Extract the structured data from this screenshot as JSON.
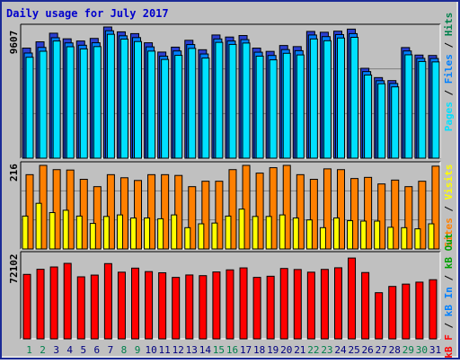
{
  "colors": {
    "frame_bg": "#c0c0c0",
    "frame_border": "#1b2a96",
    "title": "#0000cc",
    "bar_outline": "#000000",
    "pages_front": "#1414c8",
    "files_mid": "#0080ff",
    "hits_back": "#00e0ff",
    "visits": "#ffff00",
    "sites": "#ff8000",
    "kb": "#ff0000",
    "weekend_label": "#00804c",
    "weekday_label": "#000080"
  },
  "chart_data": [
    {
      "type": "bar",
      "title": "Daily usage for July 2017",
      "ylabel": "9607",
      "ylim": [
        0,
        9607
      ],
      "legend": {
        "placement": "right",
        "entries": [
          {
            "text": "Pages",
            "color": "#00e0ff"
          },
          {
            "text": " / ",
            "color": "#000000"
          },
          {
            "text": "Files",
            "color": "#0080ff"
          },
          {
            "text": " / ",
            "color": "#000000"
          },
          {
            "text": "Hits",
            "color": "#00804c"
          }
        ]
      },
      "categories": [
        "1",
        "2",
        "3",
        "4",
        "5",
        "6",
        "7",
        "8",
        "9",
        "10",
        "11",
        "12",
        "13",
        "14",
        "15",
        "16",
        "17",
        "18",
        "19",
        "20",
        "21",
        "22",
        "23",
        "24",
        "25",
        "26",
        "27",
        "28",
        "29",
        "30",
        "31"
      ],
      "series": [
        {
          "name": "Hits",
          "values": [
            8060,
            8520,
            9150,
            8740,
            8580,
            8770,
            9607,
            9250,
            9120,
            8450,
            7770,
            8130,
            8630,
            7940,
            9020,
            8870,
            8980,
            8060,
            7820,
            8250,
            8170,
            9280,
            9220,
            9300,
            9450,
            6580,
            5900,
            5680,
            8100,
            7550,
            7520
          ]
        },
        {
          "name": "Files",
          "values": [
            7700,
            8110,
            8820,
            8440,
            8270,
            8450,
            9330,
            8960,
            8830,
            8150,
            7470,
            7850,
            8320,
            7630,
            8730,
            8580,
            8680,
            7760,
            7520,
            7950,
            7870,
            9020,
            8900,
            9050,
            9120,
            6340,
            5670,
            5470,
            7850,
            7310,
            7300
          ]
        },
        {
          "name": "Pages",
          "values": [
            7390,
            7830,
            8580,
            8160,
            8000,
            8170,
            9070,
            8720,
            8540,
            7840,
            7230,
            7530,
            8040,
            7330,
            8480,
            8330,
            8430,
            7470,
            7200,
            7680,
            7560,
            8730,
            8600,
            8800,
            8850,
            6090,
            5450,
            5220,
            7570,
            7080,
            7050
          ]
        }
      ]
    },
    {
      "type": "bar",
      "ylabel": "216",
      "ylim": [
        0,
        216
      ],
      "legend": {
        "placement": "right",
        "entries": [
          {
            "text": "Sites",
            "color": "#ff8000"
          },
          {
            "text": " / ",
            "color": "#000000"
          },
          {
            "text": "Visits",
            "color": "#ffff00"
          }
        ]
      },
      "categories": [
        "1",
        "2",
        "3",
        "4",
        "5",
        "6",
        "7",
        "8",
        "9",
        "10",
        "11",
        "12",
        "13",
        "14",
        "15",
        "16",
        "17",
        "18",
        "19",
        "20",
        "21",
        "22",
        "23",
        "24",
        "25",
        "26",
        "27",
        "28",
        "29",
        "30",
        "31"
      ],
      "series": [
        {
          "name": "Sites",
          "values": [
            192,
            216,
            205,
            204,
            180,
            161,
            192,
            184,
            177,
            192,
            192,
            190,
            161,
            175,
            175,
            205,
            216,
            196,
            210,
            216,
            192,
            180,
            207,
            205,
            182,
            185,
            168,
            178,
            161,
            175,
            214
          ]
        },
        {
          "name": "Visits",
          "values": [
            85,
            118,
            94,
            100,
            85,
            66,
            84,
            88,
            80,
            80,
            78,
            88,
            55,
            65,
            67,
            85,
            103,
            84,
            84,
            88,
            80,
            75,
            55,
            80,
            73,
            72,
            72,
            56,
            55,
            52,
            65
          ]
        }
      ]
    },
    {
      "type": "bar",
      "ylabel": "72102",
      "ylim": [
        0,
        72102
      ],
      "legend": {
        "placement": "right",
        "entries": [
          {
            "text": "kB F",
            "color": "#ff0000"
          },
          {
            "text": " / ",
            "color": "#000000"
          },
          {
            "text": "kB In",
            "color": "#0080ff"
          },
          {
            "text": " / ",
            "color": "#000000"
          },
          {
            "text": "kB Out",
            "color": "#00a000"
          }
        ]
      },
      "categories": [
        "1",
        "2",
        "3",
        "4",
        "5",
        "6",
        "7",
        "8",
        "9",
        "10",
        "11",
        "12",
        "13",
        "14",
        "15",
        "16",
        "17",
        "18",
        "19",
        "20",
        "21",
        "22",
        "23",
        "24",
        "25",
        "26",
        "27",
        "28",
        "29",
        "30",
        "31"
      ],
      "series": [
        {
          "name": "kB F",
          "values": [
            55600,
            60000,
            62000,
            65100,
            53500,
            55000,
            64900,
            57500,
            61000,
            58000,
            57000,
            53000,
            55100,
            54500,
            57700,
            59500,
            61200,
            53000,
            54000,
            60700,
            59800,
            57500,
            59900,
            61300,
            69700,
            57200,
            39800,
            45200,
            47200,
            48900,
            51000
          ]
        }
      ]
    }
  ],
  "days": [
    "1",
    "2",
    "3",
    "4",
    "5",
    "6",
    "7",
    "8",
    "9",
    "10",
    "11",
    "12",
    "13",
    "14",
    "15",
    "16",
    "17",
    "18",
    "19",
    "20",
    "21",
    "22",
    "23",
    "24",
    "25",
    "26",
    "27",
    "28",
    "29",
    "30",
    "31"
  ],
  "weekend_days": [
    1,
    2,
    8,
    9,
    15,
    16,
    22,
    23,
    29,
    30
  ]
}
